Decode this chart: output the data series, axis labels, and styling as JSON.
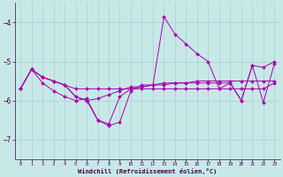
{
  "background_color": "#c8e8e8",
  "grid_color": "#aad4d4",
  "line_color": "#aa00aa",
  "xlim": [
    -0.5,
    23.5
  ],
  "ylim": [
    -7.5,
    -3.5
  ],
  "yticks": [
    -7,
    -6,
    -5,
    -4
  ],
  "xticks": [
    0,
    1,
    2,
    3,
    4,
    5,
    6,
    7,
    8,
    9,
    10,
    11,
    12,
    13,
    14,
    15,
    16,
    17,
    18,
    19,
    20,
    21,
    22,
    23
  ],
  "xlabel": "Windchill (Refroidissement éolien,°C)",
  "series": [
    {
      "x": [
        0,
        1,
        2,
        3,
        4,
        5,
        6,
        7,
        8,
        9,
        10,
        11,
        12,
        13,
        14,
        15,
        16,
        17,
        18,
        19,
        20,
        21,
        22,
        23
      ],
      "y": [
        -5.7,
        -5.2,
        -5.4,
        -5.5,
        -5.6,
        -5.9,
        -6.0,
        -6.5,
        -6.65,
        -6.55,
        -5.75,
        -5.6,
        -5.6,
        -3.85,
        -4.3,
        -4.55,
        -4.8,
        -5.0,
        -5.7,
        -5.55,
        -6.0,
        -5.1,
        -5.15,
        -5.0
      ]
    },
    {
      "x": [
        0,
        1,
        2,
        3,
        4,
        5,
        6,
        7,
        8,
        9,
        10,
        11,
        12,
        13,
        14,
        15,
        16,
        17,
        18,
        19,
        20,
        21,
        22,
        23
      ],
      "y": [
        -5.7,
        -5.2,
        -5.4,
        -5.5,
        -5.6,
        -5.7,
        -5.7,
        -5.7,
        -5.7,
        -5.7,
        -5.7,
        -5.7,
        -5.7,
        -5.7,
        -5.7,
        -5.7,
        -5.7,
        -5.7,
        -5.7,
        -5.7,
        -5.7,
        -5.7,
        -5.7,
        -5.55
      ]
    },
    {
      "x": [
        0,
        1,
        2,
        3,
        4,
        5,
        6,
        7,
        8,
        9,
        10,
        11,
        12,
        13,
        14,
        15,
        16,
        17,
        18,
        19,
        20,
        21,
        22,
        23
      ],
      "y": [
        -5.7,
        -5.2,
        -5.4,
        -5.5,
        -5.6,
        -5.9,
        -6.0,
        -5.95,
        -5.85,
        -5.75,
        -5.65,
        -5.65,
        -5.6,
        -5.55,
        -5.55,
        -5.55,
        -5.5,
        -5.5,
        -5.5,
        -5.5,
        -5.5,
        -5.5,
        -5.5,
        -5.5
      ]
    },
    {
      "x": [
        0,
        1,
        2,
        3,
        4,
        5,
        6,
        7,
        8,
        9,
        10,
        11,
        12,
        13,
        14,
        15,
        16,
        17,
        18,
        19,
        20,
        21,
        22,
        23
      ],
      "y": [
        -5.7,
        -5.2,
        -5.55,
        -5.75,
        -5.9,
        -6.0,
        -5.95,
        -6.5,
        -6.6,
        -5.9,
        -5.7,
        -5.65,
        -5.6,
        -5.6,
        -5.55,
        -5.55,
        -5.55,
        -5.55,
        -5.55,
        -5.55,
        -6.0,
        -5.1,
        -6.05,
        -5.05
      ]
    }
  ]
}
